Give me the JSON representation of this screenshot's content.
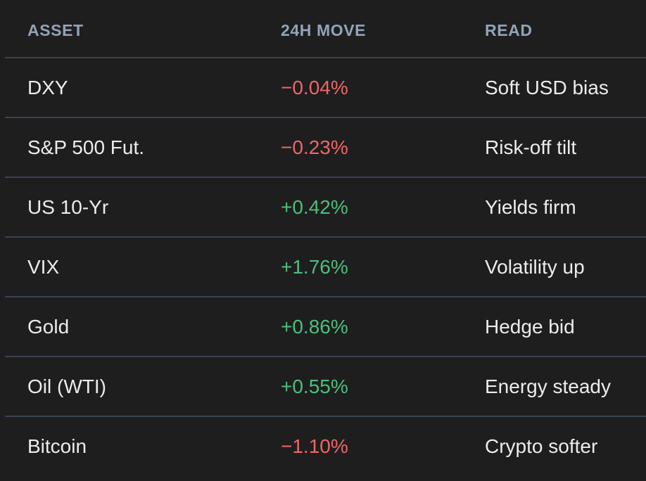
{
  "table": {
    "columns": [
      "ASSET",
      "24H MOVE",
      "READ"
    ],
    "rows": [
      {
        "asset": "DXY",
        "move": "−0.04%",
        "direction": "down",
        "read": "Soft USD bias"
      },
      {
        "asset": "S&P 500 Fut.",
        "move": "−0.23%",
        "direction": "down",
        "read": "Risk-off tilt"
      },
      {
        "asset": "US 10-Yr",
        "move": "+0.42%",
        "direction": "up",
        "read": "Yields firm"
      },
      {
        "asset": "VIX",
        "move": "+1.76%",
        "direction": "up",
        "read": "Volatility up"
      },
      {
        "asset": "Gold",
        "move": "+0.86%",
        "direction": "up",
        "read": "Hedge bid"
      },
      {
        "asset": "Oil (WTI)",
        "move": "+0.55%",
        "direction": "up",
        "read": "Energy steady"
      },
      {
        "asset": "Bitcoin",
        "move": "−1.10%",
        "direction": "down",
        "read": "Crypto softer"
      }
    ]
  },
  "colors": {
    "background": "#1e1e1f",
    "header_text": "#93a3b8",
    "divider": "#3b4250",
    "positive": "#4cbf7b",
    "negative": "#ef6666",
    "text": "#ececec"
  }
}
